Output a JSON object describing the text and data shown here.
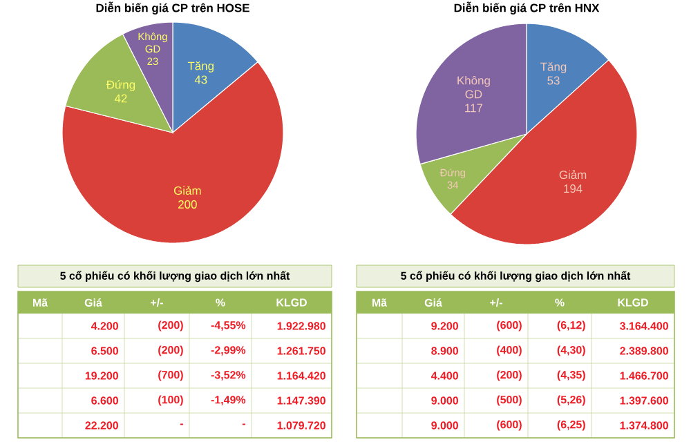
{
  "chart_data": [
    {
      "type": "pie",
      "title": "Diễn biến giá CP trên HOSE",
      "categories": [
        "Tăng",
        "Giảm",
        "Đứng",
        "Không GD"
      ],
      "values": [
        43,
        200,
        42,
        23
      ],
      "colors": [
        "#4f81bd",
        "#d9403a",
        "#9bbb59",
        "#8064a2"
      ],
      "data_labels": true
    },
    {
      "type": "pie",
      "title": "Diễn biến giá CP trên HNX",
      "categories": [
        "Tăng",
        "Giảm",
        "Đứng",
        "Không GD"
      ],
      "values": [
        53,
        194,
        34,
        117
      ],
      "colors": [
        "#4f81bd",
        "#d9403a",
        "#9bbb59",
        "#8064a2"
      ],
      "data_labels": true
    },
    {
      "type": "other",
      "title": "5 cổ phiếu có khối lượng giao dịch lớn nhất",
      "categories": [
        "Mã",
        "Giá",
        "+/-",
        "%",
        "KLGD"
      ],
      "y_categories": [
        null,
        null,
        null,
        null,
        null
      ],
      "cell_labels": [
        [
          "4.200",
          "(200)",
          "-4,55%",
          "1.922.980"
        ],
        [
          "6.500",
          "(200)",
          "-2,99%",
          "1.261.750"
        ],
        [
          "19.200",
          "(700)",
          "-3,52%",
          "1.164.420"
        ],
        [
          "6.600",
          "(100)",
          "-1,49%",
          "1.147.390"
        ],
        [
          "22.200",
          "-",
          "-",
          "1.079.720"
        ]
      ]
    },
    {
      "type": "other",
      "title": "5 cổ phiếu có khối lượng giao dịch lớn nhất",
      "categories": [
        "Mã",
        "Giá",
        "+/-",
        "%",
        "KLGD"
      ],
      "y_categories": [
        null,
        null,
        null,
        null,
        null
      ],
      "cell_labels": [
        [
          "9.200",
          "(600)",
          "(6,12)",
          "3.164.400"
        ],
        [
          "8.900",
          "(400)",
          "(4,30)",
          "2.389.800"
        ],
        [
          "4.400",
          "(200)",
          "(4,35)",
          "1.466.700"
        ],
        [
          "9.000",
          "(500)",
          "(5,26)",
          "1.397.600"
        ],
        [
          "9.000",
          "(600)",
          "(6,25)",
          "1.374.800"
        ]
      ]
    }
  ]
}
